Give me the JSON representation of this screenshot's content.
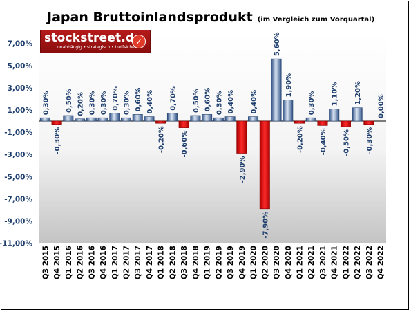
{
  "title": "Japan Bruttoinlandsprodukt",
  "subtitle": "(im Vergleich zum Vorquartal)",
  "logo": {
    "name": "stockstreet.de",
    "tagline": "unabhängig • strategisch • treffsicher"
  },
  "colors": {
    "positive": "#4a6e9c",
    "negative": "#d91010",
    "axis_label": "#1f3f6e"
  },
  "chart_data": {
    "type": "bar",
    "title": "Japan Bruttoinlandsprodukt",
    "subtitle": "(im Vergleich zum Vorquartal)",
    "categories": [
      "Q3 2015",
      "Q4 2015",
      "Q1 2016",
      "Q2 2016",
      "Q3 2016",
      "Q4 2016",
      "Q1 2017",
      "Q2 2017",
      "Q3 2017",
      "Q4 2017",
      "Q1 2018",
      "Q2 2018",
      "Q3 2018",
      "Q4 2018",
      "Q1 2019",
      "Q2 2019",
      "Q3 2019",
      "Q4 2019",
      "Q1 2020",
      "Q2 2020",
      "Q3 2020",
      "Q4 2020",
      "Q1 2021",
      "Q2 2021",
      "Q3 2021",
      "Q4 2021",
      "Q1 2022",
      "Q2 2022",
      "Q3 2022",
      "Q4 2022"
    ],
    "values": [
      0.3,
      -0.3,
      0.5,
      0.2,
      0.3,
      0.3,
      0.7,
      0.3,
      0.6,
      0.4,
      -0.2,
      0.7,
      -0.6,
      0.5,
      0.6,
      0.3,
      0.4,
      -2.9,
      0.4,
      -7.9,
      5.6,
      1.9,
      -0.2,
      0.3,
      -0.4,
      1.1,
      -0.5,
      1.2,
      -0.3,
      0.0
    ],
    "data_labels": [
      "0,30%",
      "-0,30%",
      "0,50%",
      "0,20%",
      "0,30%",
      "0,30%",
      "0,70%",
      "0,30%",
      "0,60%",
      "0,40%",
      "-0,20%",
      "0,70%",
      "-0,60%",
      "0,50%",
      "0,60%",
      "0,30%",
      "0,40%",
      "-2,90%",
      "0,40%",
      "-7,90%",
      "5,60%",
      "1,90%",
      "-0,20%",
      "0,30%",
      "-0,40%",
      "1,10%",
      "-0,50%",
      "1,20%",
      "-0,30%",
      "0,00%"
    ],
    "yticks": [
      7,
      5,
      3,
      1,
      -1,
      -3,
      -5,
      -7,
      -9,
      -11
    ],
    "ytick_labels": [
      "7,00%",
      "5,00%",
      "3,00%",
      "1,00%",
      "-1,00%",
      "-3,00%",
      "-5,00%",
      "-7,00%",
      "-9,00%",
      "-11,00%"
    ],
    "ylim": [
      -11,
      8
    ],
    "xlabel": "",
    "ylabel": "",
    "grid": false,
    "legend": "none"
  }
}
